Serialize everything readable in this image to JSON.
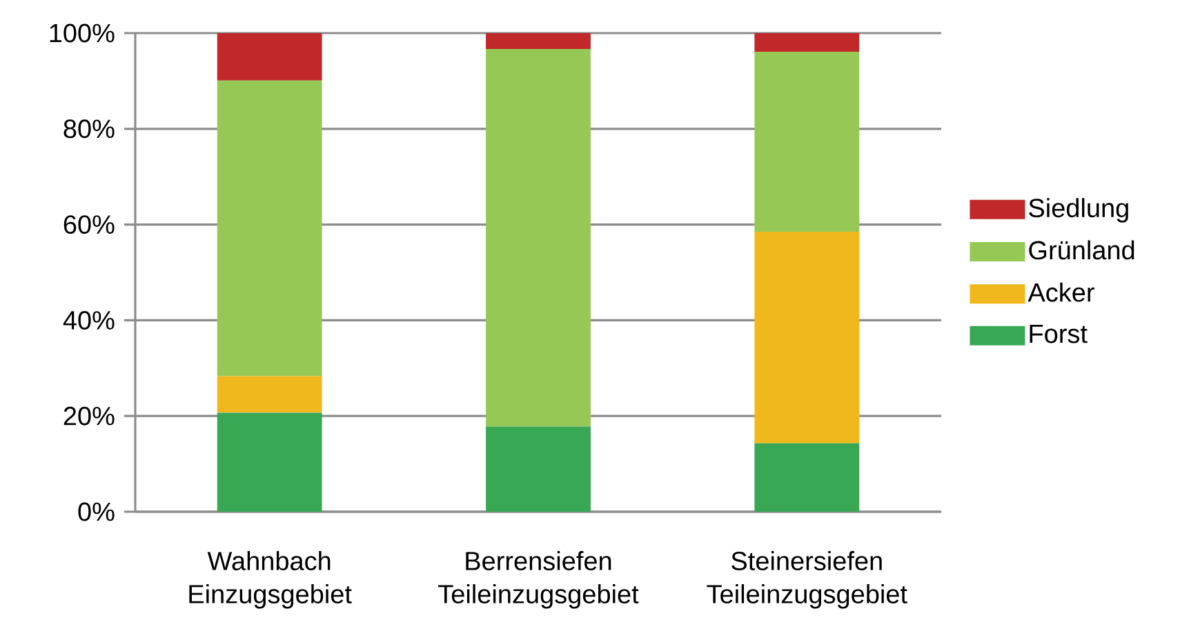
{
  "chart_data": {
    "type": "bar",
    "stacked": true,
    "categories": [
      "Wahnbach Einzugsgebiet",
      "Berrensiefen Teileinzugsgebiet",
      "Steinersiefen Teileinzugsgebiet"
    ],
    "series": [
      {
        "name": "Forst",
        "color": "#38a854",
        "values": [
          20.7,
          17.8,
          14.3
        ]
      },
      {
        "name": "Acker",
        "color": "#f0b81c",
        "values": [
          7.6,
          0,
          44.2
        ]
      },
      {
        "name": "Grünland",
        "color": "#96c855",
        "values": [
          61.8,
          78.9,
          37.6
        ]
      },
      {
        "name": "Siedlung",
        "color": "#c0282a",
        "values": [
          9.9,
          3.3,
          3.9
        ]
      }
    ],
    "ylim": [
      0,
      100
    ],
    "yticks": [
      {
        "value": 0,
        "label": "0%"
      },
      {
        "value": 20,
        "label": "20%"
      },
      {
        "value": 40,
        "label": "40%"
      },
      {
        "value": 60,
        "label": "60%"
      },
      {
        "value": 80,
        "label": "80%"
      },
      {
        "value": 100,
        "label": "100%"
      }
    ],
    "grid": "y",
    "legend": "right"
  }
}
